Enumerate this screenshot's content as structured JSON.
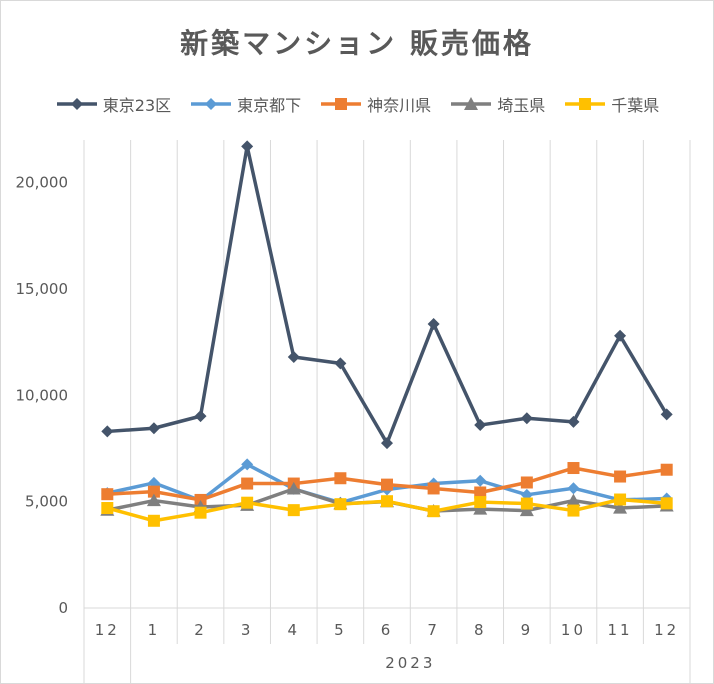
{
  "chart_data": {
    "type": "line",
    "title": "新築マンション 販売価格",
    "categories": [
      "12",
      "1",
      "2",
      "3",
      "4",
      "5",
      "6",
      "7",
      "8",
      "9",
      "10",
      "11",
      "12"
    ],
    "category_group": {
      "label": "2023",
      "start_index": 1,
      "end_index": 12
    },
    "ylim": [
      0,
      22000
    ],
    "yticks": [
      0,
      5000,
      10000,
      15000,
      20000
    ],
    "ytick_labels": [
      "0",
      "5,000",
      "10,000",
      "15,000",
      "20,000"
    ],
    "legend_position": "top",
    "grid": "vertical",
    "series": [
      {
        "name": "東京23区",
        "color": "#44546a",
        "marker": "diamond",
        "values": [
          8300,
          8450,
          9020,
          21700,
          11800,
          11500,
          7750,
          13350,
          8600,
          8920,
          8750,
          12800,
          9100
        ]
      },
      {
        "name": "東京都下",
        "color": "#5b9bd5",
        "marker": "diamond",
        "values": [
          5400,
          5880,
          5050,
          6750,
          5600,
          4950,
          5570,
          5850,
          5980,
          5320,
          5630,
          5080,
          5150
        ]
      },
      {
        "name": "神奈川県",
        "color": "#ed7d31",
        "marker": "square",
        "values": [
          5350,
          5470,
          5080,
          5850,
          5850,
          6100,
          5800,
          5620,
          5430,
          5900,
          6580,
          6180,
          6500
        ]
      },
      {
        "name": "埼玉県",
        "color": "#7f7f7f",
        "marker": "triangle",
        "values": [
          4600,
          5050,
          4750,
          4830,
          5600,
          4900,
          5000,
          4560,
          4650,
          4580,
          5050,
          4700,
          4800
        ]
      },
      {
        "name": "千葉県",
        "color": "#ffc000",
        "marker": "square",
        "values": [
          4700,
          4100,
          4480,
          4950,
          4600,
          4880,
          5020,
          4550,
          4980,
          4910,
          4580,
          5100,
          4920
        ]
      }
    ]
  }
}
